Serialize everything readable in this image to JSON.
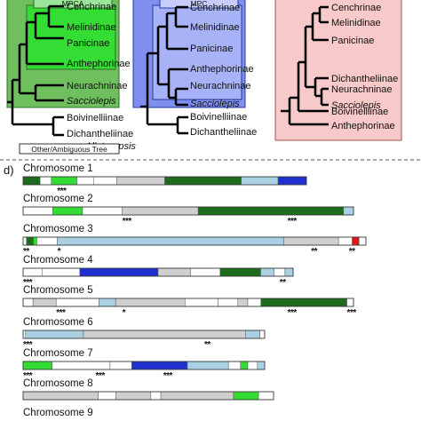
{
  "panel_left": {
    "box_label": "MPCA",
    "taxa": [
      "Cenchrinae",
      "Melinidinae",
      "Panicinae",
      "Anthephorinae",
      "Neurachninae",
      "Sacciolepis",
      "Boivinelliinae",
      "Dichantheliinae",
      "+ Alloteropsis"
    ],
    "legend": "Other/Ambiguous Tree"
  },
  "panel_mid": {
    "box_label": "MPC",
    "taxa": [
      "Cenchrinae",
      "Melinidinae",
      "Panicinae",
      "Anthephorinae",
      "Neurachninae",
      "Sacciolepis",
      "Boivinelliinae",
      "Dichantheliinae"
    ]
  },
  "panel_right": {
    "taxa": [
      "Cenchrinae",
      "Melinidinae",
      "Panicinae",
      "Dichantheliinae",
      "Neurachninae",
      "Sacciolepis",
      "Boivinelliinae",
      "Anthephorinae"
    ]
  },
  "panel_d": {
    "label": "d)"
  },
  "colors": {
    "dark_green": "#1d6b1d",
    "bright_green": "#33dd33",
    "light_blue": "#a9d1e3",
    "blue": "#1f2fd0",
    "red": "#ee1111",
    "gray": "#cfcfcf",
    "white": "#ffffff",
    "box_green": "#6fbf5e",
    "box_blue": "#7f8ff0",
    "box_pink": "#f7c9c9"
  },
  "chromosomes": [
    {
      "name": "Chromosome 1",
      "stars": [
        {
          "x": "***"
        }
      ],
      "segments": [
        [
          "dark_green",
          0,
          0.06
        ],
        [
          "white",
          0.06,
          0.1
        ],
        [
          "bright_green",
          0.1,
          0.19
        ],
        [
          "white",
          0.19,
          0.25
        ],
        [
          "white",
          0.25,
          0.33
        ],
        [
          "gray",
          0.33,
          0.5
        ],
        [
          "dark_green",
          0.5,
          0.77
        ],
        [
          "light_blue",
          0.77,
          0.9
        ],
        [
          "blue",
          0.9,
          1
        ]
      ]
    },
    {
      "name": "Chromosome 2",
      "stars": [
        {
          "x": "***"
        },
        {
          "x": "***"
        }
      ],
      "segments": [
        [
          "white",
          0,
          0.09
        ],
        [
          "bright_green",
          0.09,
          0.18
        ],
        [
          "white",
          0.18,
          0.3
        ],
        [
          "gray",
          0.3,
          0.53
        ],
        [
          "dark_green",
          0.53,
          0.97
        ],
        [
          "light_blue",
          0.97,
          1
        ]
      ]
    },
    {
      "name": "Chromosome 3",
      "stars": [
        {
          "x": "**"
        },
        {
          "x": "*"
        },
        {
          "x": "**"
        },
        {
          "x": "**"
        }
      ],
      "segments": [
        [
          "white",
          0,
          0.01
        ],
        [
          "dark_green",
          0.01,
          0.03
        ],
        [
          "bright_green",
          0.03,
          0.04
        ],
        [
          "white",
          0.04,
          0.1
        ],
        [
          "light_blue",
          0.1,
          0.76
        ],
        [
          "gray",
          0.76,
          0.92
        ],
        [
          "white",
          0.92,
          0.96
        ],
        [
          "red",
          0.96,
          0.98
        ],
        [
          "white",
          0.98,
          1
        ]
      ]
    },
    {
      "name": "Chromosome 4",
      "stars": [
        {
          "x": "***"
        },
        {
          "x": "**"
        }
      ],
      "segments": [
        [
          "white",
          0,
          0.07
        ],
        [
          "white",
          0.07,
          0.21
        ],
        [
          "blue",
          0.21,
          0.5
        ],
        [
          "gray",
          0.5,
          0.62
        ],
        [
          "white",
          0.62,
          0.73
        ],
        [
          "dark_green",
          0.73,
          0.88
        ],
        [
          "light_blue",
          0.88,
          0.93
        ],
        [
          "white",
          0.93,
          0.97
        ],
        [
          "light_blue",
          0.97,
          1
        ]
      ]
    },
    {
      "name": "Chromosome 5",
      "stars": [
        {
          "x": "***"
        },
        {
          "x": "*"
        },
        {
          "x": "***"
        },
        {
          "x": "***"
        }
      ],
      "segments": [
        [
          "white",
          0,
          0.03
        ],
        [
          "gray",
          0.03,
          0.1
        ],
        [
          "white",
          0.1,
          0.23
        ],
        [
          "light_blue",
          0.23,
          0.28
        ],
        [
          "gray",
          0.28,
          0.49
        ],
        [
          "white",
          0.49,
          0.59
        ],
        [
          "white",
          0.59,
          0.65
        ],
        [
          "gray",
          0.65,
          0.68
        ],
        [
          "white",
          0.68,
          0.72
        ],
        [
          "dark_green",
          0.72,
          0.98
        ],
        [
          "white",
          0.98,
          1
        ]
      ]
    },
    {
      "name": "Chromosome 6",
      "stars": [
        {
          "x": "***"
        },
        {
          "x": "**"
        }
      ],
      "segments": [
        [
          "white",
          0,
          0.01
        ],
        [
          "light_blue",
          0.01,
          0.25
        ],
        [
          "gray",
          0.25,
          0.92
        ],
        [
          "light_blue",
          0.92,
          0.98
        ],
        [
          "white",
          0.98,
          1
        ]
      ]
    },
    {
      "name": "Chromosome 7",
      "stars": [
        {
          "x": "***"
        },
        {
          "x": "***"
        },
        {
          "x": "***"
        }
      ],
      "segments": [
        [
          "bright_green",
          0,
          0.12
        ],
        [
          "white",
          0.12,
          0.36
        ],
        [
          "white",
          0.36,
          0.45
        ],
        [
          "blue",
          0.45,
          0.68
        ],
        [
          "light_blue",
          0.68,
          0.85
        ],
        [
          "white",
          0.85,
          0.9
        ],
        [
          "bright_green",
          0.9,
          0.93
        ],
        [
          "white",
          0.93,
          0.97
        ],
        [
          "light_blue",
          0.97,
          1
        ]
      ]
    },
    {
      "name": "Chromosome 8",
      "segments": [
        [
          "gray",
          0,
          0.3
        ],
        [
          "white",
          0.3,
          0.37
        ],
        [
          "gray",
          0.37,
          0.51
        ],
        [
          "white",
          0.51,
          0.55
        ],
        [
          "gray",
          0.55,
          0.84
        ],
        [
          "bright_green",
          0.84,
          0.94
        ],
        [
          "white",
          0.94,
          1
        ]
      ]
    },
    {
      "name": "Chromosome 9",
      "stars": [],
      "segments": []
    }
  ]
}
